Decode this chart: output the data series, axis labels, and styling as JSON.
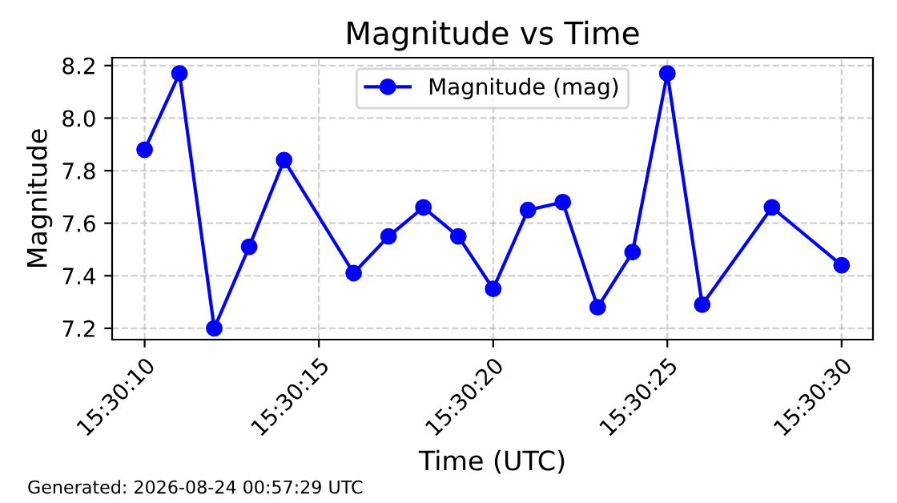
{
  "chart_data": {
    "type": "line",
    "title": "Magnitude vs Time",
    "xlabel": "Time (UTC)",
    "ylabel": "Magnitude",
    "x": [
      15.502778,
      15.503056,
      15.503333,
      15.503611,
      15.503889,
      15.504444,
      15.504722,
      15.505,
      15.505278,
      15.505556,
      15.505833,
      15.506111,
      15.506389,
      15.506667,
      15.506944,
      15.507222,
      15.507778,
      15.508333
    ],
    "series": [
      {
        "name": "Magnitude (mag)",
        "color": "#0000ff",
        "values": [
          7.88,
          8.17,
          7.2,
          7.51,
          7.84,
          7.41,
          7.55,
          7.66,
          7.55,
          7.35,
          7.65,
          7.68,
          7.28,
          7.49,
          8.17,
          7.29,
          7.66,
          7.44
        ]
      }
    ],
    "xlim": [
      15.502519,
      15.508583
    ],
    "xticks": [
      {
        "value": 15.502778,
        "label": "15:30:10"
      },
      {
        "value": 15.504167,
        "label": "15:30:15"
      },
      {
        "value": 15.505556,
        "label": "15:30:20"
      },
      {
        "value": 15.506944,
        "label": "15:30:25"
      },
      {
        "value": 15.508333,
        "label": "15:30:30"
      }
    ],
    "ylim": [
      7.157,
      8.23
    ],
    "yticks": [
      7.2,
      7.4,
      7.6,
      7.8,
      {
        "value": 8,
        "label": "8.0"
      },
      8.2
    ],
    "grid": true,
    "legend": "top",
    "marker": "circle",
    "line_style": "solid",
    "annotations": [
      "Generated: 2026-08-24 00:57:29 UTC"
    ]
  }
}
